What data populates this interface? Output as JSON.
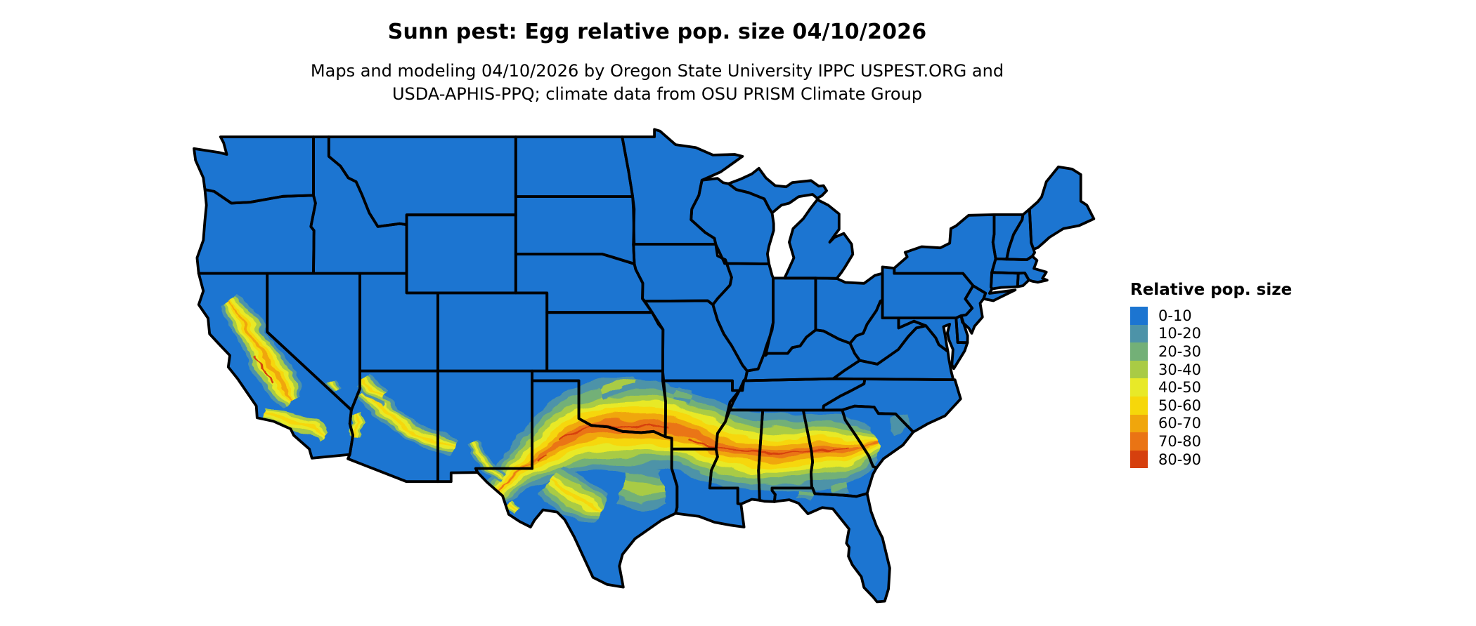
{
  "header": {
    "title": "Sunn pest: Egg relative pop. size 04/10/2026",
    "subtitle_line1": "Maps and modeling 04/10/2026 by Oregon State University IPPC USPEST.ORG and",
    "subtitle_line2": "USDA-APHIS-PPQ; climate data from OSU PRISM Climate Group"
  },
  "legend": {
    "title": "Relative pop. size",
    "items": [
      {
        "label": "0-10",
        "color": "#1C75D1"
      },
      {
        "label": "10-20",
        "color": "#4D93A8"
      },
      {
        "label": "20-30",
        "color": "#73B077"
      },
      {
        "label": "30-40",
        "color": "#A9CB45"
      },
      {
        "label": "40-50",
        "color": "#E8E928"
      },
      {
        "label": "50-60",
        "color": "#F6D70A"
      },
      {
        "label": "60-70",
        "color": "#F0A60C"
      },
      {
        "label": "70-80",
        "color": "#EA7414"
      },
      {
        "label": "80-90",
        "color": "#D6400E"
      }
    ]
  },
  "map": {
    "region": "Continental United States",
    "base_color": "#1C75D1",
    "border_color": "#000000",
    "water_color": "#FFFFFF"
  }
}
